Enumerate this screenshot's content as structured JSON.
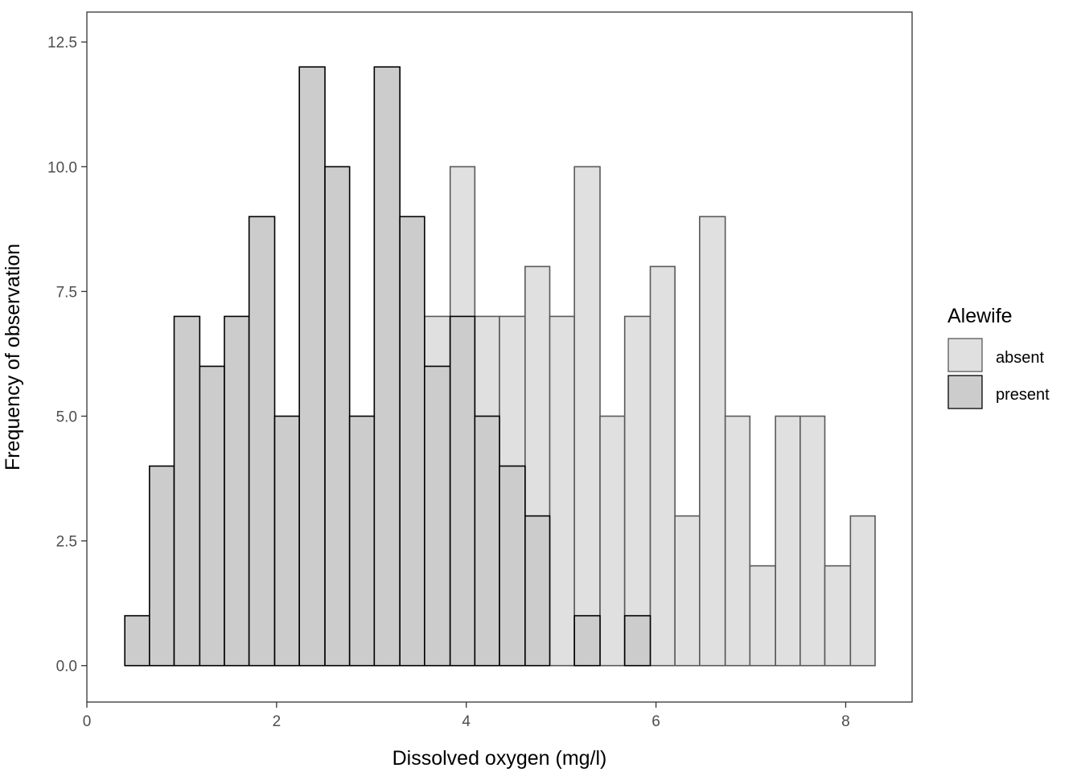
{
  "chart_data": {
    "type": "bar",
    "subtype": "overlaid-histogram",
    "xlabel": "Dissolved oxygen (mg/l)",
    "ylabel": "Frequency of observation",
    "xlim": [
      0,
      8.7
    ],
    "ylim": [
      -0.73,
      13.1
    ],
    "x_ticks": [
      0,
      2,
      4,
      6,
      8
    ],
    "x_tick_labels": [
      "0",
      "2",
      "4",
      "6",
      "8"
    ],
    "y_ticks": [
      0,
      2.5,
      5,
      7.5,
      10,
      12.5
    ],
    "y_tick_labels": [
      "0.0",
      "2.5",
      "5.0",
      "7.5",
      "10.0",
      "12.5"
    ],
    "grid": false,
    "legend": {
      "title": "Alewife",
      "position": "right",
      "entries": [
        "absent",
        "present"
      ]
    },
    "bins": [
      [
        0.4,
        0.66
      ],
      [
        0.66,
        0.92
      ],
      [
        0.92,
        1.19
      ],
      [
        1.19,
        1.45
      ],
      [
        1.45,
        1.71
      ],
      [
        1.71,
        1.98
      ],
      [
        1.98,
        2.24
      ],
      [
        2.24,
        2.51
      ],
      [
        2.51,
        2.77
      ],
      [
        2.77,
        3.03
      ],
      [
        3.03,
        3.3
      ],
      [
        3.3,
        3.56
      ],
      [
        3.56,
        3.83
      ],
      [
        3.83,
        4.09
      ],
      [
        4.09,
        4.35
      ],
      [
        4.35,
        4.62
      ],
      [
        4.62,
        4.88
      ],
      [
        4.88,
        5.14
      ],
      [
        5.14,
        5.41
      ],
      [
        5.41,
        5.67
      ],
      [
        5.67,
        5.94
      ],
      [
        5.94,
        6.2
      ],
      [
        6.2,
        6.46
      ],
      [
        6.46,
        6.73
      ],
      [
        6.73,
        6.99
      ],
      [
        6.99,
        7.26
      ],
      [
        7.26,
        7.52
      ],
      [
        7.52,
        7.78
      ],
      [
        7.78,
        8.05
      ],
      [
        8.05,
        8.31
      ]
    ],
    "series": [
      {
        "name": "absent",
        "fill": "#e0e0e0",
        "stroke": "#595959",
        "values": [
          0,
          0,
          0,
          0,
          0,
          0,
          0,
          0,
          0,
          0,
          0,
          0,
          7,
          10,
          7,
          7,
          8,
          7,
          10,
          5,
          7,
          8,
          3,
          9,
          5,
          2,
          5,
          5,
          2,
          3
        ]
      },
      {
        "name": "present",
        "fill": "#cccccc",
        "stroke": "#000000",
        "values": [
          1,
          4,
          7,
          6,
          7,
          9,
          5,
          12,
          10,
          5,
          12,
          9,
          6,
          7,
          5,
          4,
          3,
          0,
          1,
          0,
          1,
          0,
          0,
          0,
          0,
          0,
          0,
          0,
          0,
          0
        ]
      }
    ]
  }
}
